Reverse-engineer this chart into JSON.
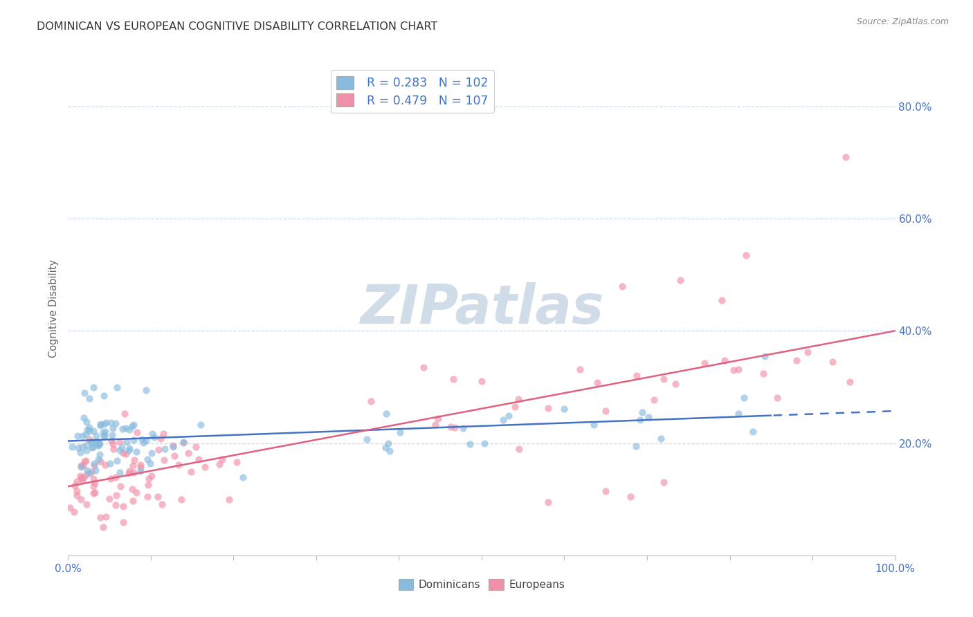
{
  "title": "DOMINICAN VS EUROPEAN COGNITIVE DISABILITY CORRELATION CHART",
  "source": "Source: ZipAtlas.com",
  "ylabel": "Cognitive Disability",
  "yticks": [
    "20.0%",
    "40.0%",
    "60.0%",
    "80.0%"
  ],
  "ytick_vals": [
    0.2,
    0.4,
    0.6,
    0.8
  ],
  "dom_R": "0.283",
  "dom_N": "102",
  "eur_R": "0.479",
  "eur_N": "107",
  "dominican_color": "#88bbdd",
  "european_color": "#f090a8",
  "dom_scatter_color": "#88bbdd",
  "eur_scatter_color": "#f090a8",
  "trend_dominican": "#4472c4",
  "trend_european": "#e06080",
  "watermark_color": "#d0dce8",
  "background_color": "#ffffff",
  "grid_color": "#c8d8e8",
  "title_color": "#333333",
  "axis_label_color": "#4472c4",
  "legend_text_dark": "#333333",
  "legend_R_N_color": "#4472c4",
  "source_color": "#888888"
}
